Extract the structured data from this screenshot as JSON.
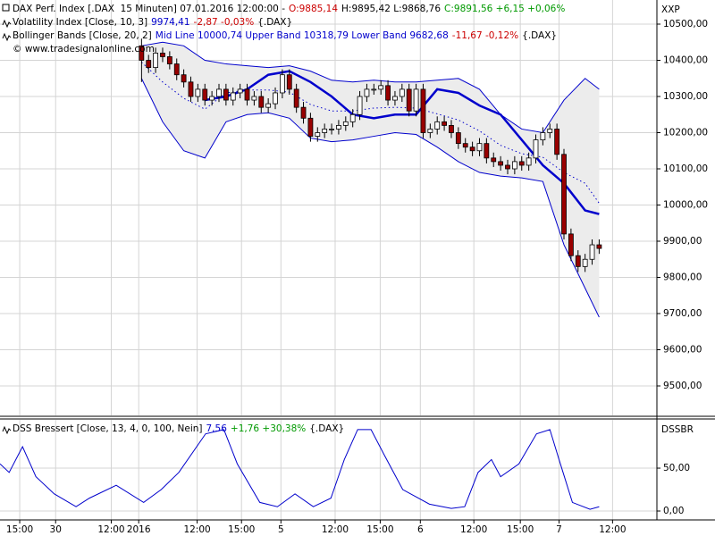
{
  "chart_data": [
    {
      "type": "candlestick",
      "axis_label": "XXP",
      "header": [
        [
          {
            "text": "DAX Perf. Index [.DAX  15 Minuten] 07.01.2016 12:00:00 -",
            "color": "#000000"
          },
          {
            "text": "O:9885,14",
            "color": "#cc0000"
          },
          {
            "text": "H:9895,42 L:9868,76",
            "color": "#000000"
          },
          {
            "text": "C:9891,56 +6,15 +0,06%",
            "color": "#009900"
          }
        ],
        [
          {
            "text": "Volatility Index [Close, 10, 3]",
            "color": "#000000"
          },
          {
            "text": "9974,41",
            "color": "#0000cc"
          },
          {
            "text": "-2,87 -0,03%",
            "color": "#cc0000"
          },
          {
            "text": "{.DAX}",
            "color": "#000000"
          }
        ],
        [
          {
            "text": "Bollinger Bands [Close, 20, 2]",
            "color": "#000000"
          },
          {
            "text": "Mid Line 10000,74 Upper Band 10318,79 Lower Band 9682,68",
            "color": "#0000cc"
          },
          {
            "text": "-11,67 -0,12%",
            "color": "#cc0000"
          },
          {
            "text": "{.DAX}",
            "color": "#000000"
          }
        ],
        [
          {
            "text": "© www.tradesignalonline.com",
            "color": "#000000"
          }
        ]
      ],
      "xlim": [
        -20.1,
        73.2
      ],
      "ylim": [
        9418.5,
        10566.7
      ],
      "yticks": [
        {
          "value": 9500,
          "label": "9500,00"
        },
        {
          "value": 9600,
          "label": "9600,00"
        },
        {
          "value": 9700,
          "label": "9700,00"
        },
        {
          "value": 9800,
          "label": "9800,00"
        },
        {
          "value": 9900,
          "label": "9900,00"
        },
        {
          "value": 10000,
          "label": "10000,00"
        },
        {
          "value": 10100,
          "label": "10100,00"
        },
        {
          "value": 10200,
          "label": "10200,00"
        },
        {
          "value": 10300,
          "label": "10300,00"
        },
        {
          "value": 10400,
          "label": "10400,00"
        },
        {
          "value": 10500,
          "label": "10500,00"
        }
      ],
      "grid": true,
      "up_color": "#ffffff",
      "down_color": "#990000",
      "band_fill": "#ececec",
      "x": [
        0,
        1,
        2,
        3,
        4,
        5,
        6,
        7,
        8,
        9,
        10,
        11,
        12,
        13,
        14,
        15,
        16,
        17,
        18,
        19,
        20,
        21,
        22,
        23,
        24,
        25,
        26,
        27,
        28,
        29,
        30,
        31,
        32,
        33,
        34,
        35,
        36,
        37,
        38,
        39,
        40,
        41,
        42,
        43,
        44,
        45,
        46,
        47,
        48,
        49,
        50,
        51,
        52,
        53,
        54,
        55,
        56,
        57,
        58,
        59,
        60,
        61,
        62,
        63,
        64,
        65
      ],
      "open": [
        10440,
        10400,
        10380,
        10420,
        10410,
        10390,
        10360,
        10340,
        10300,
        10320,
        10290,
        10300,
        10320,
        10290,
        10310,
        10320,
        10290,
        10300,
        10270,
        10280,
        10310,
        10360,
        10320,
        10270,
        10240,
        10190,
        10200,
        10210,
        10210,
        10220,
        10230,
        10250,
        10300,
        10320,
        10320,
        10330,
        10290,
        10300,
        10320,
        10260,
        10320,
        10200,
        10210,
        10230,
        10220,
        10200,
        10170,
        10160,
        10150,
        10170,
        10130,
        10120,
        10110,
        10100,
        10120,
        10110,
        10130,
        10180,
        10200,
        10210,
        10140,
        9920,
        9860,
        9830,
        9850,
        9890
      ],
      "high": [
        10460,
        10415,
        10435,
        10435,
        10425,
        10405,
        10375,
        10355,
        10335,
        10335,
        10315,
        10335,
        10335,
        10325,
        10335,
        10335,
        10315,
        10315,
        10295,
        10325,
        10375,
        10375,
        10335,
        10285,
        10255,
        10215,
        10225,
        10225,
        10235,
        10245,
        10265,
        10315,
        10335,
        10335,
        10345,
        10345,
        10315,
        10335,
        10335,
        10335,
        10335,
        10225,
        10245,
        10245,
        10235,
        10215,
        10185,
        10175,
        10185,
        10185,
        10145,
        10135,
        10125,
        10135,
        10135,
        10145,
        10195,
        10215,
        10225,
        10225,
        10155,
        9935,
        9875,
        9865,
        9905,
        9905
      ],
      "low": [
        10340,
        10365,
        10365,
        10395,
        10375,
        10345,
        10325,
        10285,
        10285,
        10275,
        10275,
        10285,
        10275,
        10275,
        10295,
        10275,
        10275,
        10255,
        10255,
        10265,
        10295,
        10305,
        10255,
        10225,
        10175,
        10175,
        10185,
        10195,
        10195,
        10205,
        10215,
        10235,
        10285,
        10305,
        10305,
        10275,
        10275,
        10285,
        10245,
        10245,
        10185,
        10185,
        10195,
        10205,
        10185,
        10155,
        10145,
        10135,
        10135,
        10115,
        10105,
        10095,
        10085,
        10085,
        10095,
        10095,
        10115,
        10165,
        10185,
        10125,
        9905,
        9845,
        9815,
        9815,
        9835,
        9865
      ],
      "close": [
        10400,
        10380,
        10420,
        10410,
        10390,
        10360,
        10340,
        10300,
        10320,
        10290,
        10300,
        10320,
        10290,
        10310,
        10320,
        10290,
        10300,
        10270,
        10280,
        10310,
        10360,
        10320,
        10270,
        10240,
        10190,
        10200,
        10210,
        10210,
        10220,
        10230,
        10250,
        10300,
        10320,
        10320,
        10330,
        10290,
        10300,
        10320,
        10260,
        10320,
        10200,
        10210,
        10230,
        10220,
        10200,
        10170,
        10160,
        10150,
        10170,
        10130,
        10120,
        10110,
        10100,
        10120,
        10110,
        10130,
        10180,
        10200,
        10210,
        10140,
        9920,
        9860,
        9830,
        9850,
        9890,
        9880
      ],
      "series": [
        {
          "color": "#0000cc",
          "width": 1,
          "x": [
            0,
            3,
            6,
            9,
            12,
            15,
            18,
            21,
            24,
            27,
            30,
            33,
            36,
            39,
            42,
            45,
            48,
            51,
            54,
            57,
            60,
            63,
            65
          ],
          "values": [
            10440,
            10450,
            10440,
            10400,
            10390,
            10385,
            10380,
            10385,
            10370,
            10345,
            10340,
            10345,
            10340,
            10340,
            10345,
            10350,
            10320,
            10250,
            10210,
            10200,
            10290,
            10350,
            10320
          ]
        },
        {
          "color": "#0000cc",
          "width": 1,
          "dash": true,
          "x": [
            0,
            3,
            6,
            9,
            12,
            15,
            18,
            21,
            24,
            27,
            30,
            33,
            36,
            39,
            42,
            45,
            48,
            51,
            54,
            57,
            60,
            63,
            65
          ],
          "values": [
            10395,
            10340,
            10295,
            10265,
            10310,
            10318,
            10318,
            10312,
            10278,
            10260,
            10260,
            10268,
            10270,
            10268,
            10252,
            10235,
            10205,
            10165,
            10142,
            10132,
            10090,
            10060,
            10005
          ]
        },
        {
          "color": "#0000cc",
          "width": 1,
          "x": [
            0,
            3,
            6,
            9,
            12,
            15,
            18,
            21,
            24,
            27,
            30,
            33,
            36,
            39,
            42,
            45,
            48,
            51,
            54,
            57,
            60,
            63,
            65
          ],
          "values": [
            10350,
            10230,
            10150,
            10130,
            10230,
            10250,
            10255,
            10240,
            10185,
            10175,
            10180,
            10190,
            10200,
            10195,
            10160,
            10120,
            10090,
            10080,
            10075,
            10065,
            9890,
            9770,
            9690
          ]
        },
        {
          "color": "#0000cc",
          "width": 2.5,
          "x": [
            0,
            3,
            6,
            9,
            12,
            15,
            18,
            21,
            24,
            27,
            30,
            33,
            36,
            39,
            42,
            45,
            48,
            51,
            54,
            57,
            60,
            63,
            65
          ],
          "values": [
            null,
            null,
            null,
            10290,
            10300,
            10320,
            10360,
            10370,
            10340,
            10300,
            10250,
            10240,
            10250,
            10250,
            10320,
            10310,
            10275,
            10250,
            10180,
            10110,
            10060,
            9985,
            9975
          ]
        }
      ]
    },
    {
      "type": "line",
      "axis_label": "DSSBR",
      "header": [
        [
          {
            "text": "DSS Bressert [Close, 13, 4, 0, 100, Nein]",
            "color": "#000000"
          },
          {
            "text": "7,56",
            "color": "#0000cc"
          },
          {
            "text": "+1,76 +30,38%",
            "color": "#009900"
          },
          {
            "text": "{.DAX}",
            "color": "#000000"
          }
        ]
      ],
      "xlim": [
        -20.1,
        73.2
      ],
      "ylim": [
        -10.4,
        106.3
      ],
      "yticks": [
        {
          "value": 0,
          "label": "0,00"
        },
        {
          "value": 50,
          "label": "50,00"
        }
      ],
      "xticks": [
        {
          "value": -17.3,
          "label": "15:00"
        },
        {
          "value": -12.2,
          "label": "30"
        },
        {
          "value": -4.3,
          "label": "12:00"
        },
        {
          "value": -0.4,
          "label": "2016"
        },
        {
          "value": 7.9,
          "label": "12:00"
        },
        {
          "value": 14.2,
          "label": "15:00"
        },
        {
          "value": 19.8,
          "label": "5"
        },
        {
          "value": 27.5,
          "label": "12:00"
        },
        {
          "value": 33.9,
          "label": "15:00"
        },
        {
          "value": 39.6,
          "label": "6"
        },
        {
          "value": 47.2,
          "label": "12:00"
        },
        {
          "value": 53.8,
          "label": "15:00"
        },
        {
          "value": 59.3,
          "label": "7"
        },
        {
          "value": 66.9,
          "label": "12:00"
        }
      ],
      "grid": true,
      "series": [
        {
          "color": "#0000cc",
          "width": 1,
          "x": [
            -20.1,
            -18.8,
            -16.9,
            -15.0,
            -12.4,
            -9.3,
            -7.4,
            -3.6,
            0.3,
            2.8,
            5.3,
            9.1,
            11.7,
            13.6,
            16.8,
            19.3,
            21.8,
            24.4,
            26.9,
            28.8,
            30.7,
            32.6,
            34.5,
            37.1,
            40.9,
            44.0,
            45.9,
            47.8,
            49.7,
            51.0,
            53.6,
            56.1,
            58.0,
            59.3,
            61.2,
            63.7,
            65.0
          ],
          "values": [
            55,
            45,
            75,
            40,
            20,
            5,
            15,
            30,
            10,
            25,
            45,
            90,
            95,
            55,
            10,
            5,
            20,
            5,
            15,
            60,
            95,
            95,
            65,
            25,
            8,
            3,
            5,
            45,
            60,
            40,
            55,
            90,
            95,
            60,
            10,
            2,
            5
          ]
        }
      ]
    }
  ]
}
